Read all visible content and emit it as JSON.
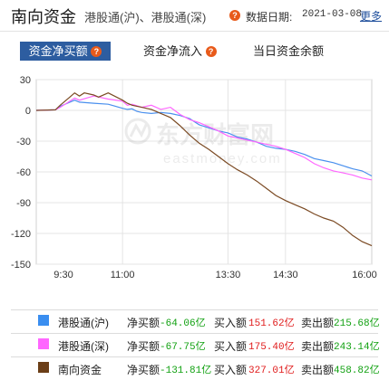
{
  "header": {
    "title": "南向资金",
    "subtitle": "港股通(沪)、港股通(深)",
    "help_icon": "question-icon",
    "date_label": "数据日期:",
    "date": "2021-03-08",
    "more_label": "更多"
  },
  "tabs": [
    {
      "label": "资金净买额",
      "active": true
    },
    {
      "label": "资金净流入",
      "active": false
    },
    {
      "label": "当日资金余额",
      "active": false
    }
  ],
  "watermark": {
    "text_cn": "东方财富网",
    "text_en": "eastmoney.com"
  },
  "chart_data": {
    "type": "line",
    "x_ticks": [
      "9:30",
      "11:00",
      "13:30",
      "14:30",
      "16:00"
    ],
    "y_ticks": [
      "30",
      "0",
      "-30",
      "-60",
      "-90",
      "-120",
      "-150"
    ],
    "ylim": [
      -150,
      30
    ],
    "grid": true,
    "unit": "亿",
    "series": [
      {
        "name": "港股通(沪)",
        "color": "#4a90ee",
        "x": [
          0,
          20,
          25,
          40,
          45,
          60,
          75,
          90,
          95,
          100,
          105,
          110,
          120,
          130,
          140,
          150,
          160,
          170,
          180,
          190,
          200,
          210,
          220,
          230,
          240,
          250,
          260,
          270,
          280,
          290,
          300,
          310,
          320,
          330,
          340,
          350
        ],
        "values": [
          0,
          0.5,
          4,
          10,
          8,
          7,
          6,
          2,
          1,
          1.5,
          -1,
          -2,
          -3,
          -2,
          -3,
          -5,
          -8,
          -14,
          -17,
          -20,
          -22,
          -26,
          -28,
          -31,
          -35,
          -37,
          -38,
          -40,
          -43,
          -47,
          -49,
          -51,
          -54,
          -57,
          -59,
          -64
        ]
      },
      {
        "name": "港股通(深)",
        "color": "#ff66ff",
        "x": [
          0,
          20,
          25,
          40,
          45,
          60,
          75,
          90,
          95,
          100,
          110,
          120,
          130,
          140,
          150,
          160,
          170,
          180,
          190,
          200,
          210,
          220,
          230,
          240,
          250,
          260,
          270,
          280,
          290,
          300,
          310,
          320,
          330,
          340,
          350
        ],
        "values": [
          0,
          0.5,
          3,
          12,
          10,
          14,
          11,
          9,
          5,
          6,
          3,
          5,
          1,
          3,
          -4,
          -9,
          -12,
          -16,
          -20,
          -25,
          -27,
          -29,
          -31,
          -33,
          -35,
          -38,
          -42,
          -46,
          -52,
          -56,
          -59,
          -61,
          -63,
          -66,
          -67.75
        ]
      },
      {
        "name": "南向资金",
        "color": "#7b4a23",
        "x": [
          0,
          20,
          25,
          35,
          40,
          45,
          50,
          60,
          65,
          75,
          90,
          95,
          100,
          110,
          120,
          130,
          140,
          150,
          160,
          170,
          180,
          190,
          200,
          210,
          220,
          230,
          240,
          250,
          260,
          270,
          280,
          290,
          300,
          310,
          320,
          330,
          340,
          350
        ],
        "values": [
          0,
          0.5,
          5,
          13,
          17,
          14,
          17,
          15,
          13,
          17,
          10,
          7,
          5,
          3,
          1,
          -3,
          -7,
          -15,
          -24,
          -32,
          -38,
          -45,
          -52,
          -58,
          -63,
          -69,
          -76,
          -83,
          -88,
          -92,
          -96,
          -101,
          -105,
          -108,
          -114,
          -122,
          -128,
          -132
        ]
      }
    ]
  },
  "legend": [
    {
      "name": "港股通(沪)",
      "color": "#3a8ef0",
      "net_label": "净买额",
      "net_value": "-64.06亿",
      "buy_label": "买入额",
      "buy_value": "151.62亿",
      "sell_label": "卖出额",
      "sell_value": "215.68亿"
    },
    {
      "name": "港股通(深)",
      "color": "#ff66ff",
      "net_label": "净买额",
      "net_value": "-67.75亿",
      "buy_label": "买入额",
      "buy_value": "175.40亿",
      "sell_label": "卖出额",
      "sell_value": "243.14亿"
    },
    {
      "name": "南向资金",
      "color": "#6b3e17",
      "net_label": "净买额",
      "net_value": "-131.81亿",
      "buy_label": "买入额",
      "buy_value": "327.01亿",
      "sell_label": "卖出额",
      "sell_value": "458.82亿"
    }
  ],
  "colors": {
    "negative": "#12a112",
    "positive": "#e01b1b",
    "accent": "#2d5da0"
  }
}
